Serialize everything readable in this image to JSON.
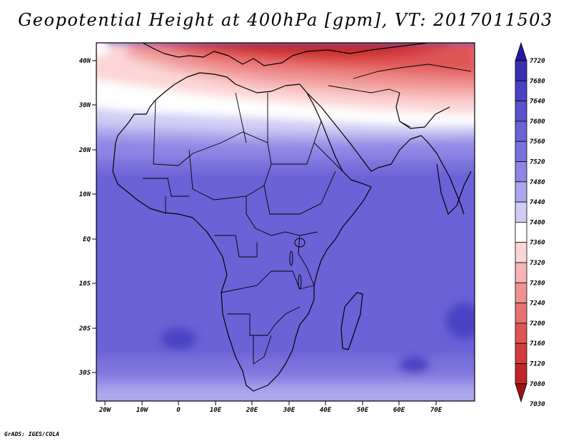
{
  "title": "Geopotential Height at 400hPa [gpm], VT: 2017011503",
  "credit": "GrADS: IGES/COLA",
  "map": {
    "projection": "latlon",
    "lon_range": [
      -23,
      80
    ],
    "lat_range": [
      -37,
      45
    ],
    "lon_ticks": [
      "20W",
      "10W",
      "0",
      "10E",
      "20E",
      "30E",
      "40E",
      "50E",
      "60E",
      "70E"
    ],
    "lat_ticks": [
      "40N",
      "30N",
      "20N",
      "10N",
      "EQ",
      "10S",
      "20S",
      "30S"
    ],
    "features": [
      "coastlines",
      "country-borders"
    ]
  },
  "colorbar": {
    "levels": [
      "7720",
      "7680",
      "7640",
      "7600",
      "7560",
      "7520",
      "7480",
      "7440",
      "7400",
      "7360",
      "7320",
      "7280",
      "7240",
      "7200",
      "7160",
      "7120",
      "7080",
      "7030"
    ],
    "colors": [
      "#241aa0",
      "#3a30b4",
      "#4a42c4",
      "#5a52cc",
      "#6a62d6",
      "#7a72dc",
      "#8e86e4",
      "#aca6ec",
      "#d0ccf4",
      "#ffffff",
      "#fcd6d6",
      "#f6b4b4",
      "#ef9292",
      "#e87272",
      "#df5454",
      "#d43c3c",
      "#c02626",
      "#9e1414"
    ]
  }
}
